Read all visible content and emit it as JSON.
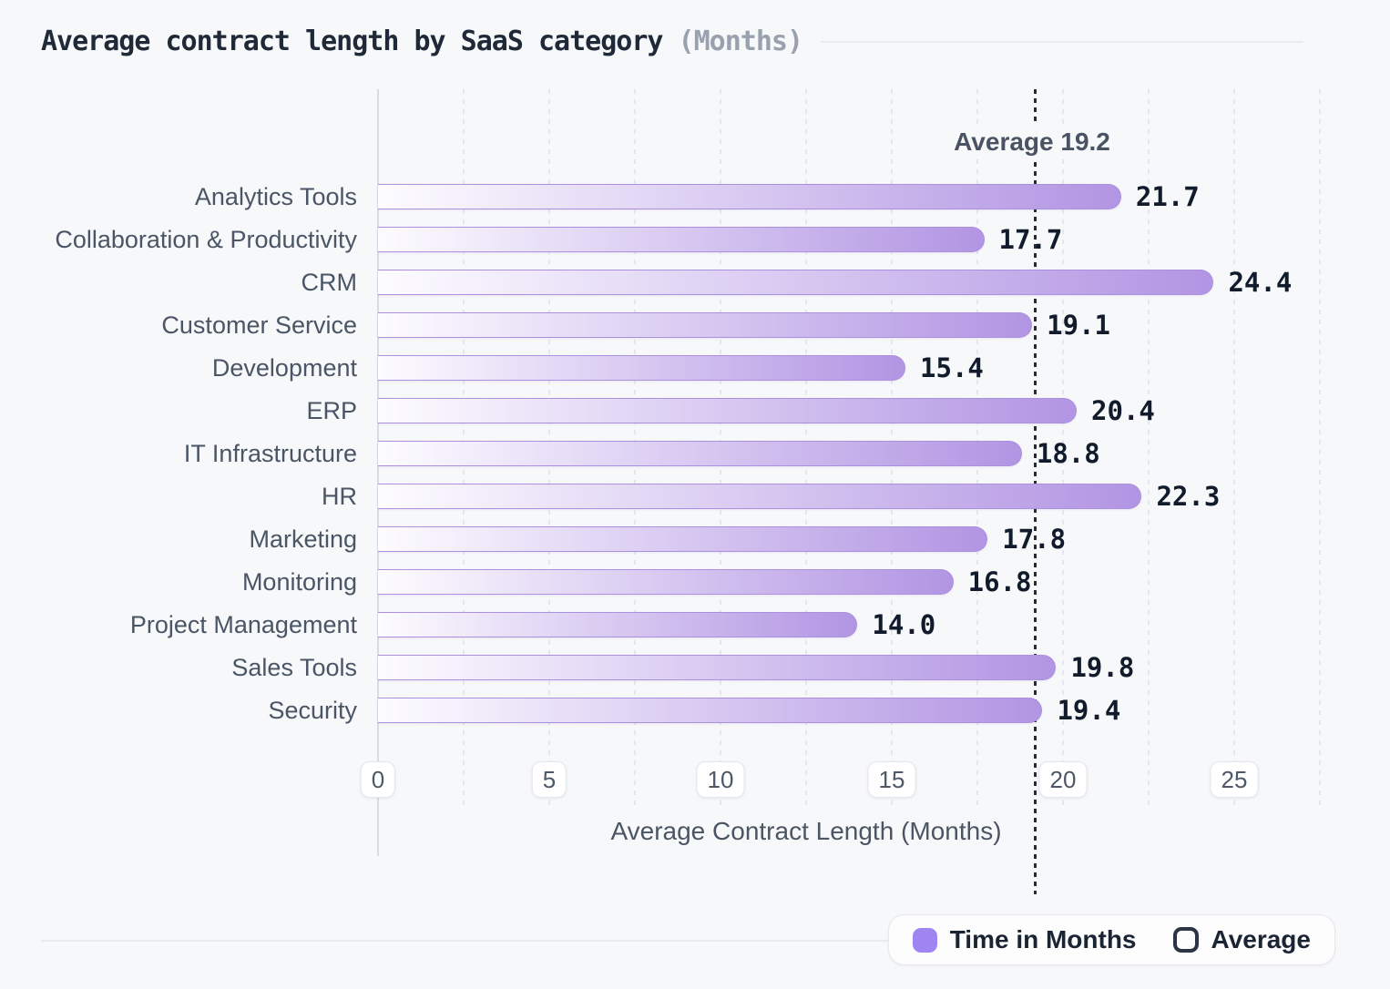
{
  "chart_data": {
    "type": "bar",
    "orientation": "horizontal",
    "title": "Average contract length by SaaS category",
    "title_suffix": "(Months)",
    "categories": [
      "Analytics Tools",
      "Collaboration & Productivity",
      "CRM",
      "Customer Service",
      "Development",
      "ERP",
      "IT Infrastructure",
      "HR",
      "Marketing",
      "Monitoring",
      "Project Management",
      "Sales Tools",
      "Security"
    ],
    "values": [
      21.7,
      17.7,
      24.4,
      19.1,
      15.4,
      20.4,
      18.8,
      22.3,
      17.8,
      16.8,
      14.0,
      19.8,
      19.4
    ],
    "value_labels": [
      "21.7",
      "17.7",
      "24.4",
      "19.1",
      "15.4",
      "20.4",
      "18.8",
      "22.3",
      "17.8",
      "16.8",
      "14.0",
      "19.8",
      "19.4"
    ],
    "average": 19.2,
    "average_label": "Average 19.2",
    "xlabel": "Average Contract Length (Months)",
    "x_ticks": [
      0,
      5,
      10,
      15,
      20,
      25
    ],
    "xlim": [
      0,
      28
    ],
    "grid": "vertical-dotted",
    "legend_position": "bottom-right",
    "legend": [
      {
        "label": "Time in Months",
        "swatch": "filled-purple-square"
      },
      {
        "label": "Average",
        "swatch": "outlined-square"
      }
    ],
    "colors": {
      "background": "#f7f8fa",
      "accent": "#a084f2",
      "bar_gradient_start": "#fdfcff",
      "bar_gradient_end": "#b295e3",
      "bar_stroke": "#ab90de",
      "average_line": "#262c38",
      "value_text": "#111b2b",
      "label_text": "#4a5565"
    }
  }
}
